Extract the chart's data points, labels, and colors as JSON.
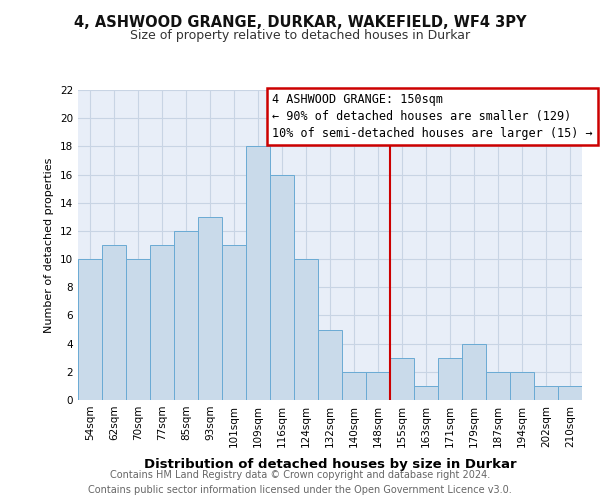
{
  "title": "4, ASHWOOD GRANGE, DURKAR, WAKEFIELD, WF4 3PY",
  "subtitle": "Size of property relative to detached houses in Durkar",
  "xlabel": "Distribution of detached houses by size in Durkar",
  "ylabel": "Number of detached properties",
  "bar_labels": [
    "54sqm",
    "62sqm",
    "70sqm",
    "77sqm",
    "85sqm",
    "93sqm",
    "101sqm",
    "109sqm",
    "116sqm",
    "124sqm",
    "132sqm",
    "140sqm",
    "148sqm",
    "155sqm",
    "163sqm",
    "171sqm",
    "179sqm",
    "187sqm",
    "194sqm",
    "202sqm",
    "210sqm"
  ],
  "bar_values": [
    10,
    11,
    10,
    11,
    12,
    13,
    11,
    18,
    16,
    10,
    5,
    2,
    2,
    3,
    1,
    3,
    4,
    2,
    2,
    1,
    1
  ],
  "bar_color": "#c9daea",
  "bar_edge_color": "#6aaad4",
  "vline_x_index": 12.5,
  "vline_color": "#cc0000",
  "annotation_text": "4 ASHWOOD GRANGE: 150sqm\n← 90% of detached houses are smaller (129)\n10% of semi-detached houses are larger (15) →",
  "annotation_box_color": "#ffffff",
  "annotation_box_edge_color": "#cc0000",
  "ylim": [
    0,
    22
  ],
  "yticks": [
    0,
    2,
    4,
    6,
    8,
    10,
    12,
    14,
    16,
    18,
    20,
    22
  ],
  "grid_color": "#c8d4e4",
  "background_color": "#e8eef8",
  "footer_text": "Contains HM Land Registry data © Crown copyright and database right 2024.\nContains public sector information licensed under the Open Government Licence v3.0.",
  "title_fontsize": 10.5,
  "subtitle_fontsize": 9,
  "xlabel_fontsize": 9.5,
  "ylabel_fontsize": 8,
  "tick_fontsize": 7.5,
  "footer_fontsize": 7,
  "ann_fontsize": 8.5
}
